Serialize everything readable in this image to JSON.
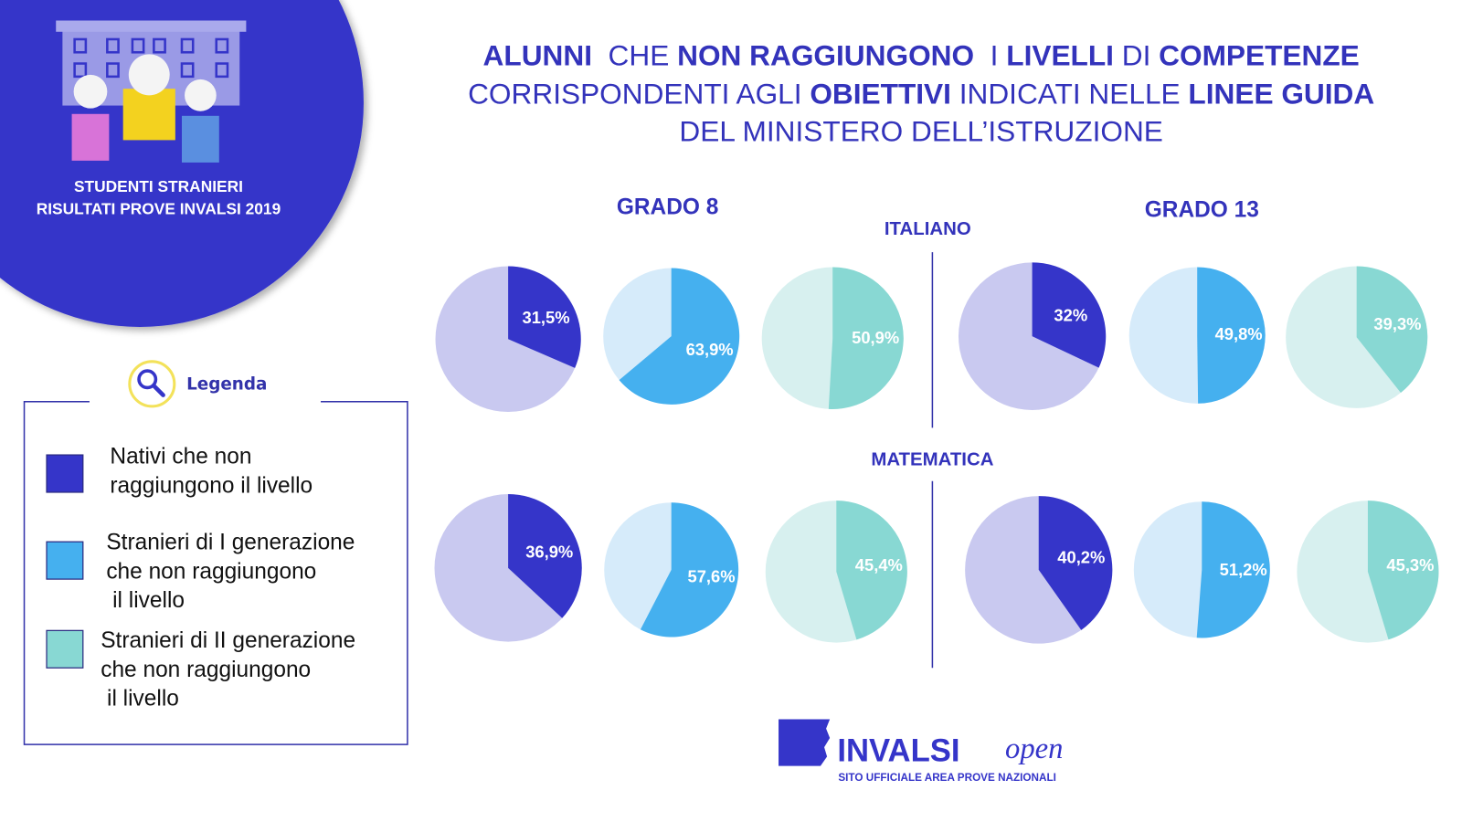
{
  "badge": {
    "line1": "STUDENTI STRANIERI",
    "line2": "RISULTATI PROVE INVALSI 2019"
  },
  "title": [
    [
      {
        "text": "ALUNNI",
        "bold": true
      },
      {
        "text": "  CHE ",
        "bold": false
      },
      {
        "text": "NON RAGGIUNGONO",
        "bold": true
      },
      {
        "text": "  I ",
        "bold": false
      },
      {
        "text": "LIVELLI",
        "bold": true
      },
      {
        "text": " DI ",
        "bold": false
      },
      {
        "text": "COMPETENZE",
        "bold": true
      }
    ],
    [
      {
        "text": "CORRISPONDENTI AGLI ",
        "bold": false
      },
      {
        "text": "OBIETTIVI",
        "bold": true
      },
      {
        "text": " INDICATI NELLE ",
        "bold": false
      },
      {
        "text": "LINEE GUIDA",
        "bold": true
      }
    ],
    [
      {
        "text": "DEL MINISTERO DELL’ISTRUZIONE",
        "bold": false
      }
    ]
  ],
  "columns": [
    "GRADO 8",
    "GRADO 13"
  ],
  "rows": [
    "ITALIANO",
    "MATEMATICA"
  ],
  "legend": {
    "title": "Legenda",
    "items": [
      {
        "label": [
          "Nativi che non",
          "raggiungono il livello"
        ],
        "color": "#3535c9"
      },
      {
        "label": [
          "Stranieri di I generazione",
          "che non raggiungono",
          " il livello"
        ],
        "color": "#45b0ef"
      },
      {
        "label": [
          "Stranieri di II generazione",
          "che non raggiungono",
          " il livello"
        ],
        "color": "#88d8d3"
      }
    ]
  },
  "chart_data": [
    {
      "type": "pie",
      "values": [
        31.5
      ],
      "value_labels": [
        "31,5%"
      ],
      "colors": [
        "#3535c9"
      ],
      "background": "#c9c9f0"
    },
    {
      "type": "pie",
      "values": [
        63.9
      ],
      "value_labels": [
        "63,9%"
      ],
      "colors": [
        "#45b0ef"
      ],
      "background": "#d6ebfa"
    },
    {
      "type": "pie",
      "values": [
        50.9
      ],
      "value_labels": [
        "50,9%"
      ],
      "colors": [
        "#88d8d3"
      ],
      "background": "#d7f0ef"
    },
    {
      "type": "pie",
      "values": [
        32
      ],
      "value_labels": [
        "32%"
      ],
      "colors": [
        "#3535c9"
      ],
      "background": "#c9c9f0"
    },
    {
      "type": "pie",
      "values": [
        49.8
      ],
      "value_labels": [
        "49,8%"
      ],
      "colors": [
        "#45b0ef"
      ],
      "background": "#d6ebfa"
    },
    {
      "type": "pie",
      "values": [
        39.3
      ],
      "value_labels": [
        "39,3%"
      ],
      "colors": [
        "#88d8d3"
      ],
      "background": "#d7f0ef"
    },
    {
      "type": "pie",
      "values": [
        36.9
      ],
      "value_labels": [
        "36,9%"
      ],
      "colors": [
        "#3535c9"
      ],
      "background": "#c9c9f0"
    },
    {
      "type": "pie",
      "values": [
        57.6
      ],
      "value_labels": [
        "57,6%"
      ],
      "colors": [
        "#45b0ef"
      ],
      "background": "#d6ebfa"
    },
    {
      "type": "pie",
      "values": [
        45.4
      ],
      "value_labels": [
        "45,4%"
      ],
      "colors": [
        "#88d8d3"
      ],
      "background": "#d7f0ef"
    },
    {
      "type": "pie",
      "values": [
        40.2
      ],
      "value_labels": [
        "40,2%"
      ],
      "colors": [
        "#3535c9"
      ],
      "background": "#c9c9f0"
    },
    {
      "type": "pie",
      "values": [
        51.2
      ],
      "value_labels": [
        "51,2%"
      ],
      "colors": [
        "#45b0ef"
      ],
      "background": "#d6ebfa"
    },
    {
      "type": "pie",
      "values": [
        45.3
      ],
      "value_labels": [
        "45,3%"
      ],
      "colors": [
        "#88d8d3"
      ],
      "background": "#d7f0ef"
    }
  ],
  "logo": {
    "brand": "INVALSI",
    "suffix": "open",
    "tagline": "SITO UFFICIALE AREA PROVE NAZIONALI"
  }
}
